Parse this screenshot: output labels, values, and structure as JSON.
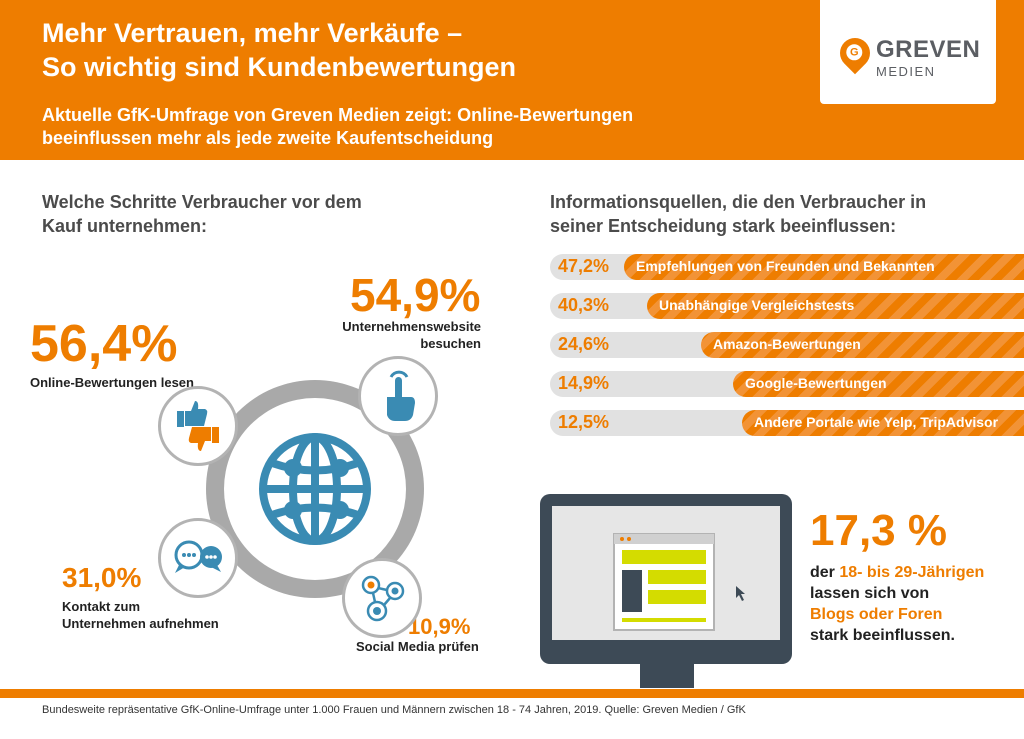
{
  "header": {
    "title_line1": "Mehr Vertrauen, mehr Verkäufe –",
    "title_line2": "So wichtig sind Kundenbewertungen",
    "subtitle_line1": "Aktuelle GfK-Umfrage von Greven Medien zeigt: Online-Bewertungen",
    "subtitle_line2": "beeinflussen mehr als jede zweite Kaufentscheidung"
  },
  "logo": {
    "mark": "G",
    "name": "GREVEN",
    "sub": "MEDIEN"
  },
  "left_section": {
    "title_line1": "Welche Schritte Verbraucher vor dem",
    "title_line2": "Kauf unternehmen:",
    "items": [
      {
        "value": "56,4%",
        "label_line1": "Online-Bewertungen lesen",
        "label_line2": "",
        "icon": "thumbs-icon"
      },
      {
        "value": "54,9%",
        "label_line1": "Unternehmenswebsite",
        "label_line2": "besuchen",
        "icon": "hand-pointer-icon"
      },
      {
        "value": "31,0%",
        "label_line1": "Kontakt zum",
        "label_line2": "Unternehmen aufnehmen",
        "icon": "chat-icon"
      },
      {
        "value": "10,9%",
        "label_line1": "Social Media prüfen",
        "label_line2": "",
        "icon": "social-network-icon"
      }
    ]
  },
  "right_section": {
    "title_line1": "Informationsquellen, die den Verbraucher in",
    "title_line2": "seiner Entscheidung stark beeinflussen:"
  },
  "chart_data": {
    "type": "bar",
    "categories": [
      "Empfehlungen von Freunden und Bekannten",
      "Unabhängige Vergleichstests",
      "Amazon-Bewertungen",
      "Google-Bewertungen",
      "Andere Portale wie Yelp, TripAdvisor"
    ],
    "values": [
      47.2,
      40.3,
      24.6,
      14.9,
      12.5
    ],
    "labels": [
      "47,2%",
      "40,3%",
      "24,6%",
      "14,9%",
      "12,5%"
    ]
  },
  "stat": {
    "value": "17,3 %",
    "line1_prefix": "der ",
    "line1_highlight": "18- bis 29-Jährigen",
    "line2": "lassen sich von",
    "line3_highlight": "Blogs oder Foren",
    "line4": "stark beeinflussen."
  },
  "colors": {
    "accent": "#ee7d00",
    "gray": "#a9a9a9",
    "icon_blue": "#3a8bb3",
    "monitor": "#3d4a56"
  },
  "footer": {
    "text": "Bundesweite repräsentative GfK-Online-Umfrage unter 1.000 Frauen und Männern zwischen 18  - 74 Jahren, 2019. Quelle: Greven Medien / GfK"
  }
}
